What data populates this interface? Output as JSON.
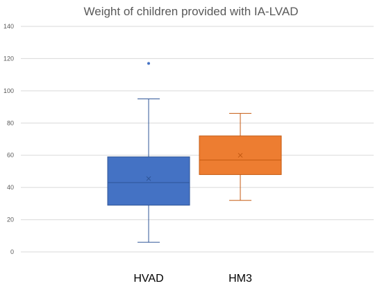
{
  "chart_data": {
    "type": "boxplot",
    "title": "Weight of children provided with IA-LVAD",
    "xlabel": "",
    "ylabel": "",
    "ylim": [
      0,
      140
    ],
    "yticks": [
      0,
      20,
      40,
      60,
      80,
      100,
      120,
      140
    ],
    "grid": true,
    "categories": [
      "HVAD",
      "HM3"
    ],
    "boxes": [
      {
        "category": "HVAD",
        "min": 6,
        "q1": 29,
        "median": 43,
        "mean": 45.5,
        "q3": 59,
        "max": 95,
        "outliers": [
          117
        ],
        "color": "#4472c4",
        "edge": "#2f5597"
      },
      {
        "category": "HM3",
        "min": 32,
        "q1": 48,
        "median": 57,
        "mean": 60,
        "q3": 72,
        "max": 86,
        "outliers": [],
        "color": "#ed7d31",
        "edge": "#c55a11"
      }
    ]
  }
}
